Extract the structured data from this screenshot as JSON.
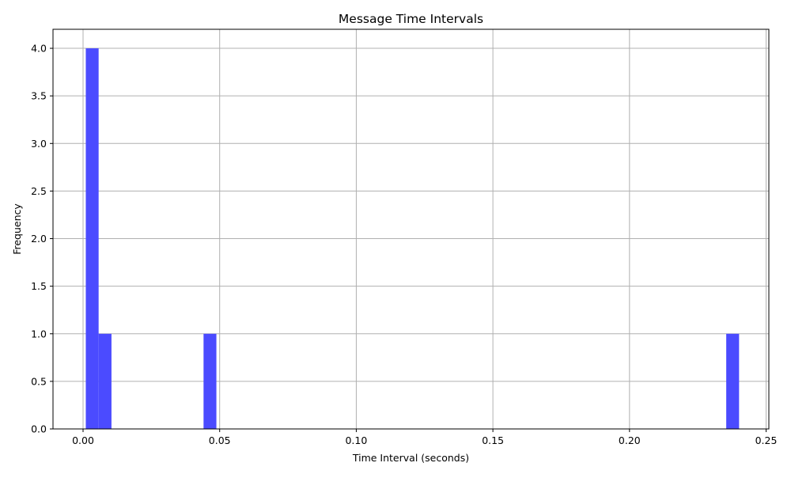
{
  "chart_data": {
    "type": "bar",
    "title": "Message Time Intervals",
    "xlabel": "Time Interval (seconds)",
    "ylabel": "Frequency",
    "xlim": [
      -0.011,
      0.251
    ],
    "ylim": [
      0,
      4.2
    ],
    "xticks": [
      0.0,
      0.05,
      0.1,
      0.15,
      0.2,
      0.25
    ],
    "xtick_labels": [
      "0.00",
      "0.05",
      "0.10",
      "0.15",
      "0.20",
      "0.25"
    ],
    "yticks": [
      0.0,
      0.5,
      1.0,
      1.5,
      2.0,
      2.5,
      3.0,
      3.5,
      4.0
    ],
    "ytick_labels": [
      "0.0",
      "0.5",
      "1.0",
      "1.5",
      "2.0",
      "2.5",
      "3.0",
      "3.5",
      "4.0"
    ],
    "grid": true,
    "bar_color": "#4b4bff",
    "bins": [
      {
        "x0": 0.001,
        "x1": 0.0057,
        "count": 4
      },
      {
        "x0": 0.0057,
        "x1": 0.0104,
        "count": 1
      },
      {
        "x0": 0.0441,
        "x1": 0.0488,
        "count": 1
      },
      {
        "x0": 0.2354,
        "x1": 0.2401,
        "count": 1
      }
    ]
  }
}
